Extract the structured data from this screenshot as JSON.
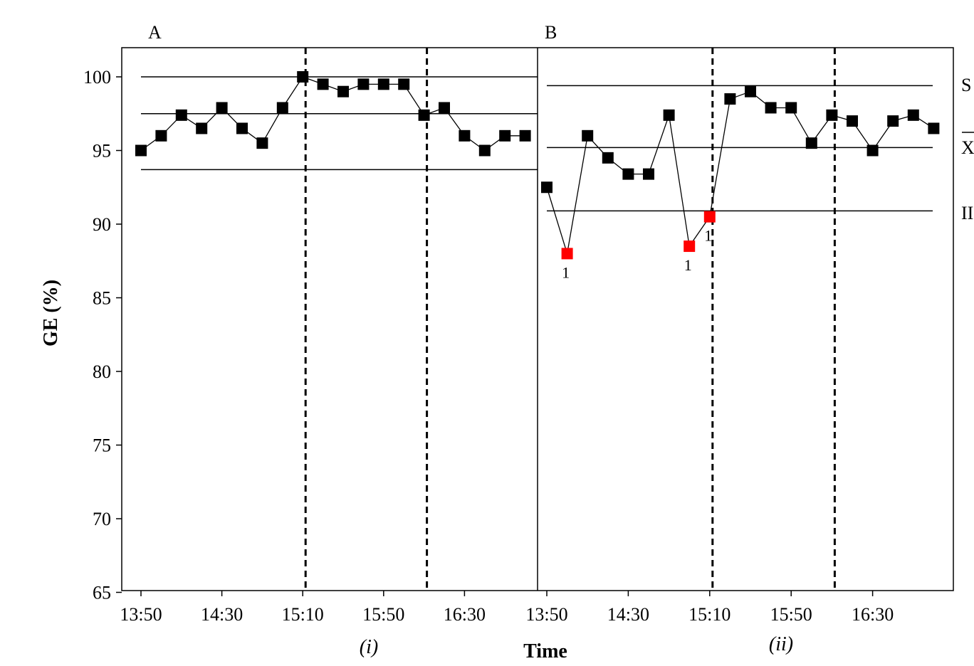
{
  "chart_data": {
    "type": "line",
    "ylabel": "GE (%)",
    "xlabel": "Time",
    "ylim": [
      65,
      102
    ],
    "yticks": [
      65,
      70,
      75,
      80,
      85,
      90,
      95,
      100
    ],
    "xtick_labels": [
      "13:50",
      "14:30",
      "15:10",
      "15:50",
      "16:30"
    ],
    "panels": [
      {
        "label": "A",
        "sublabel": "(i)",
        "x_start": "13:50",
        "interval_minutes": 10,
        "values": [
          95.0,
          96.0,
          97.4,
          96.5,
          97.9,
          96.5,
          95.5,
          97.9,
          100.0,
          99.5,
          99.0,
          99.5,
          99.5,
          99.5,
          97.4,
          97.9,
          96.0,
          95.0,
          96.0,
          96.0
        ],
        "control_lines": [
          100.0,
          97.5,
          93.7
        ],
        "phase_lines": [
          "15:10",
          "16:10"
        ],
        "flagged": [],
        "flag_label": ""
      },
      {
        "label": "B",
        "sublabel": "(ii)",
        "x_start": "13:50",
        "interval_minutes": 10,
        "values": [
          92.5,
          88.0,
          96.0,
          94.5,
          93.4,
          93.4,
          97.4,
          88.5,
          90.5,
          98.5,
          99.0,
          97.9,
          97.9,
          95.5,
          97.4,
          97.0,
          95.0,
          97.0,
          97.4,
          96.5
        ],
        "control_lines": [
          99.4,
          95.2,
          90.9
        ],
        "phase_lines": [
          "15:10",
          "16:10"
        ],
        "flagged": [
          1,
          7,
          8
        ],
        "flag_label": "1"
      }
    ],
    "right_labels": [
      "S",
      "X",
      "II"
    ],
    "colors": {
      "marker": "#000000",
      "flagged": "#ff0000",
      "line": "#000000"
    }
  }
}
